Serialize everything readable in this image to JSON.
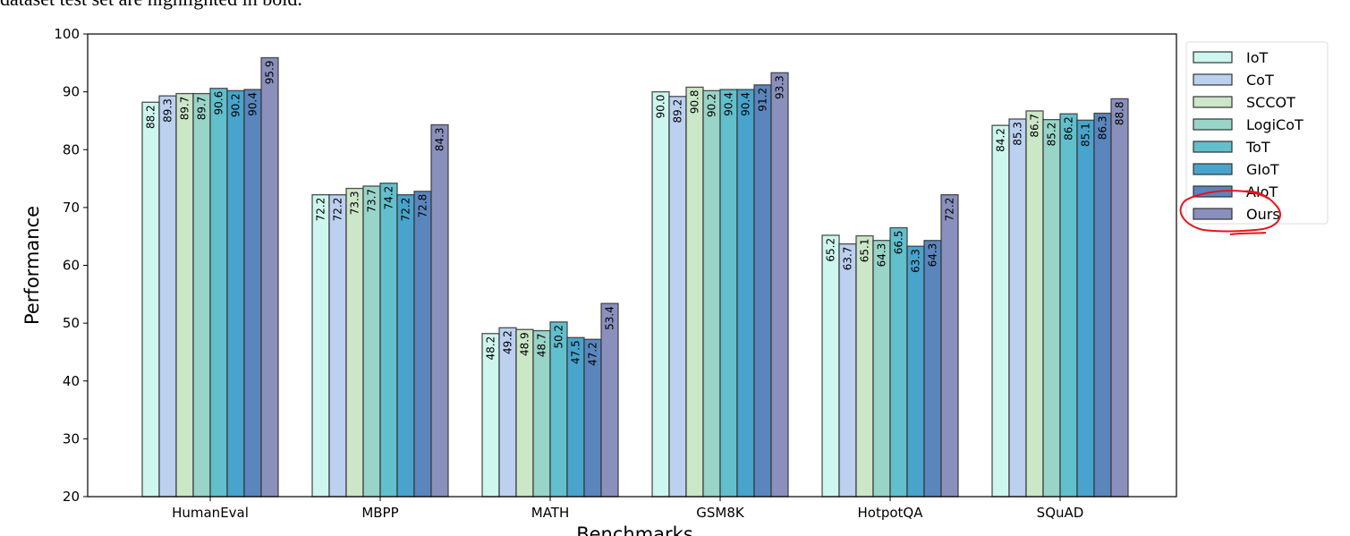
{
  "caption": "dataset test set are highlighted in bold.",
  "chart_data": {
    "type": "bar",
    "title": "",
    "xlabel": "Benchmarks",
    "ylabel": "Performance",
    "ylim": [
      20,
      100
    ],
    "yticks": [
      20,
      30,
      40,
      50,
      60,
      70,
      80,
      90,
      100
    ],
    "grid": false,
    "legend_placement": "outside-right",
    "categories": [
      "HumanEval",
      "MBPP",
      "MATH",
      "GSM8K",
      "HotpotQA",
      "SQuAD"
    ],
    "series": [
      {
        "name": "IoT",
        "color": "#cdf7ee",
        "values": [
          88.2,
          72.2,
          48.2,
          90.0,
          65.2,
          84.2
        ]
      },
      {
        "name": "CoT",
        "color": "#bcd0f0",
        "values": [
          89.3,
          72.2,
          49.2,
          89.2,
          63.7,
          85.3
        ]
      },
      {
        "name": "SCCOT",
        "color": "#cce6c8",
        "values": [
          89.7,
          73.3,
          48.9,
          90.8,
          65.1,
          86.7
        ]
      },
      {
        "name": "LogiCoT",
        "color": "#99d4c8",
        "values": [
          89.7,
          73.7,
          48.7,
          90.2,
          64.3,
          85.2
        ]
      },
      {
        "name": "ToT",
        "color": "#62bfcc",
        "values": [
          90.6,
          74.2,
          50.2,
          90.4,
          66.5,
          86.2
        ]
      },
      {
        "name": "GIoT",
        "color": "#48a4cc",
        "values": [
          90.2,
          72.2,
          47.5,
          90.4,
          63.3,
          85.1
        ]
      },
      {
        "name": "AIoT",
        "color": "#5a86bd",
        "values": [
          90.4,
          72.8,
          47.2,
          91.2,
          64.3,
          86.3
        ]
      },
      {
        "name": "Ours",
        "color": "#8a90bc",
        "values": [
          95.9,
          84.3,
          53.4,
          93.3,
          72.2,
          88.8
        ]
      }
    ],
    "annotation": {
      "type": "hand-drawn circle",
      "target": "Ours",
      "color": "#e8141c"
    }
  }
}
